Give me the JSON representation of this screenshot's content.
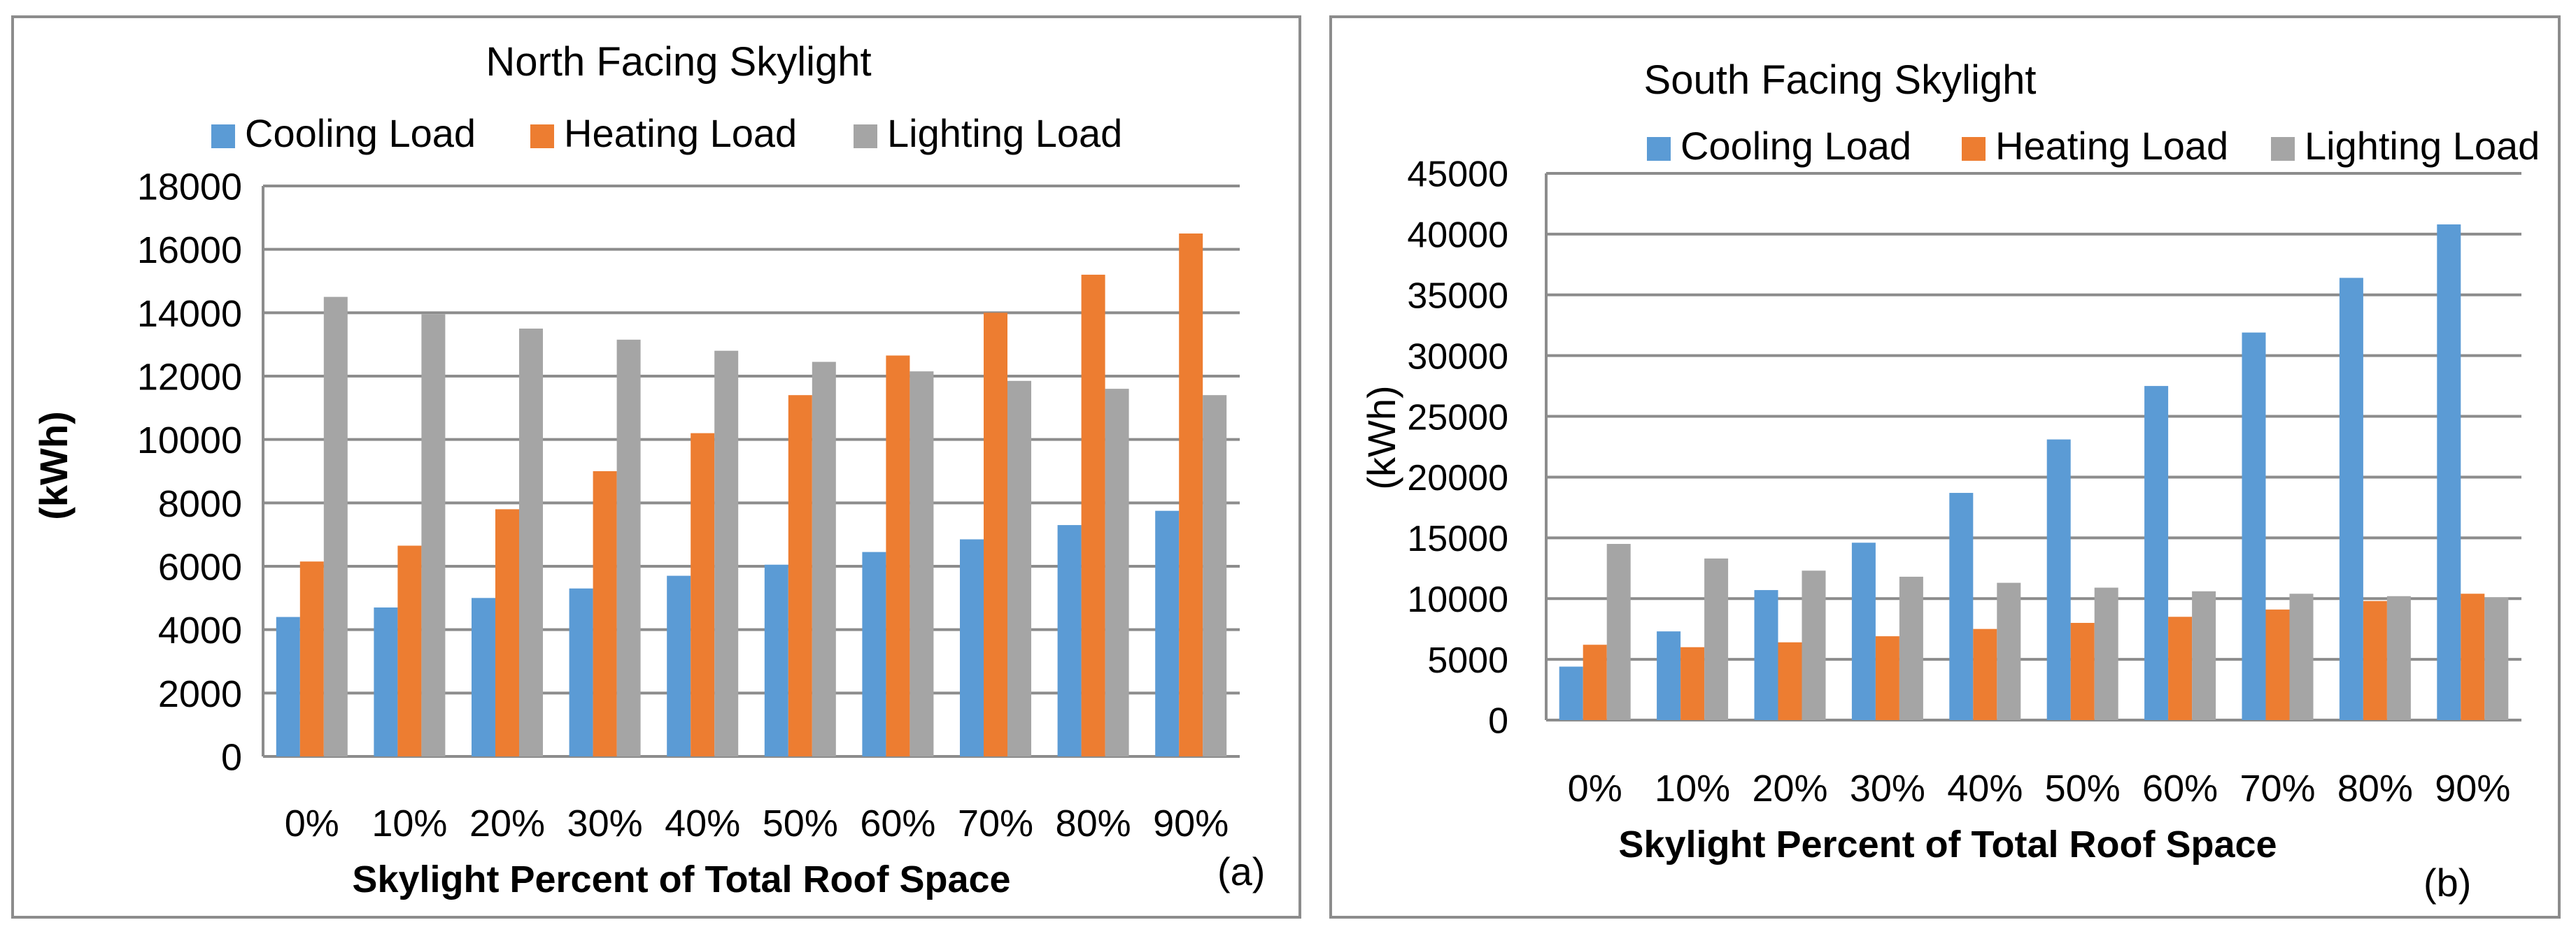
{
  "colors": {
    "cooling": "#5b9bd5",
    "heating": "#ed7d31",
    "lighting": "#a5a5a5",
    "grid": "#8c8c8c",
    "border": "#8c8c8c"
  },
  "chart_data": [
    {
      "id": "north",
      "type": "bar",
      "title": "North Facing Skylight",
      "xlabel": "Skylight Percent of Total Roof Space",
      "ylabel": "(kWh)",
      "panel_label": "(a)",
      "categories": [
        "0%",
        "10%",
        "20%",
        "30%",
        "40%",
        "50%",
        "60%",
        "70%",
        "80%",
        "90%"
      ],
      "ylim": [
        0,
        18000
      ],
      "yticks": [
        "0",
        "2000",
        "4000",
        "6000",
        "8000",
        "10000",
        "12000",
        "14000",
        "16000",
        "18000"
      ],
      "ytick_values": [
        0,
        2000,
        4000,
        6000,
        8000,
        10000,
        12000,
        14000,
        16000,
        18000
      ],
      "grid": true,
      "legend": "top",
      "series": [
        {
          "name": "Cooling Load",
          "color_key": "cooling",
          "values": [
            4400,
            4700,
            5000,
            5300,
            5700,
            6050,
            6450,
            6850,
            7300,
            7750
          ]
        },
        {
          "name": "Heating Load",
          "color_key": "heating",
          "values": [
            6150,
            6650,
            7800,
            9000,
            10200,
            11400,
            12650,
            14000,
            15200,
            16500
          ]
        },
        {
          "name": "Lighting Load",
          "color_key": "lighting",
          "values": [
            14500,
            13950,
            13500,
            13150,
            12800,
            12450,
            12150,
            11850,
            11600,
            11400
          ]
        }
      ]
    },
    {
      "id": "south",
      "type": "bar",
      "title": "South Facing Skylight",
      "xlabel": "Skylight Percent of Total Roof Space",
      "ylabel": "(kWh)",
      "panel_label": "(b)",
      "categories": [
        "0%",
        "10%",
        "20%",
        "30%",
        "40%",
        "50%",
        "60%",
        "70%",
        "80%",
        "90%"
      ],
      "ylim": [
        0,
        45000
      ],
      "yticks": [
        "0",
        "5000",
        "10000",
        "15000",
        "20000",
        "25000",
        "30000",
        "35000",
        "40000",
        "45000"
      ],
      "ytick_values": [
        0,
        5000,
        10000,
        15000,
        20000,
        25000,
        30000,
        35000,
        40000,
        45000
      ],
      "grid": true,
      "legend": "top-right",
      "series": [
        {
          "name": "Cooling Load",
          "color_key": "cooling",
          "values": [
            4400,
            7300,
            10700,
            14600,
            18700,
            23100,
            27500,
            31900,
            36400,
            40800
          ]
        },
        {
          "name": "Heating Load",
          "color_key": "heating",
          "values": [
            6200,
            6000,
            6400,
            6900,
            7500,
            8000,
            8500,
            9100,
            9800,
            10400
          ]
        },
        {
          "name": "Lighting Load",
          "color_key": "lighting",
          "values": [
            14500,
            13300,
            12300,
            11800,
            11300,
            10900,
            10600,
            10400,
            10200,
            10100
          ]
        }
      ]
    }
  ]
}
